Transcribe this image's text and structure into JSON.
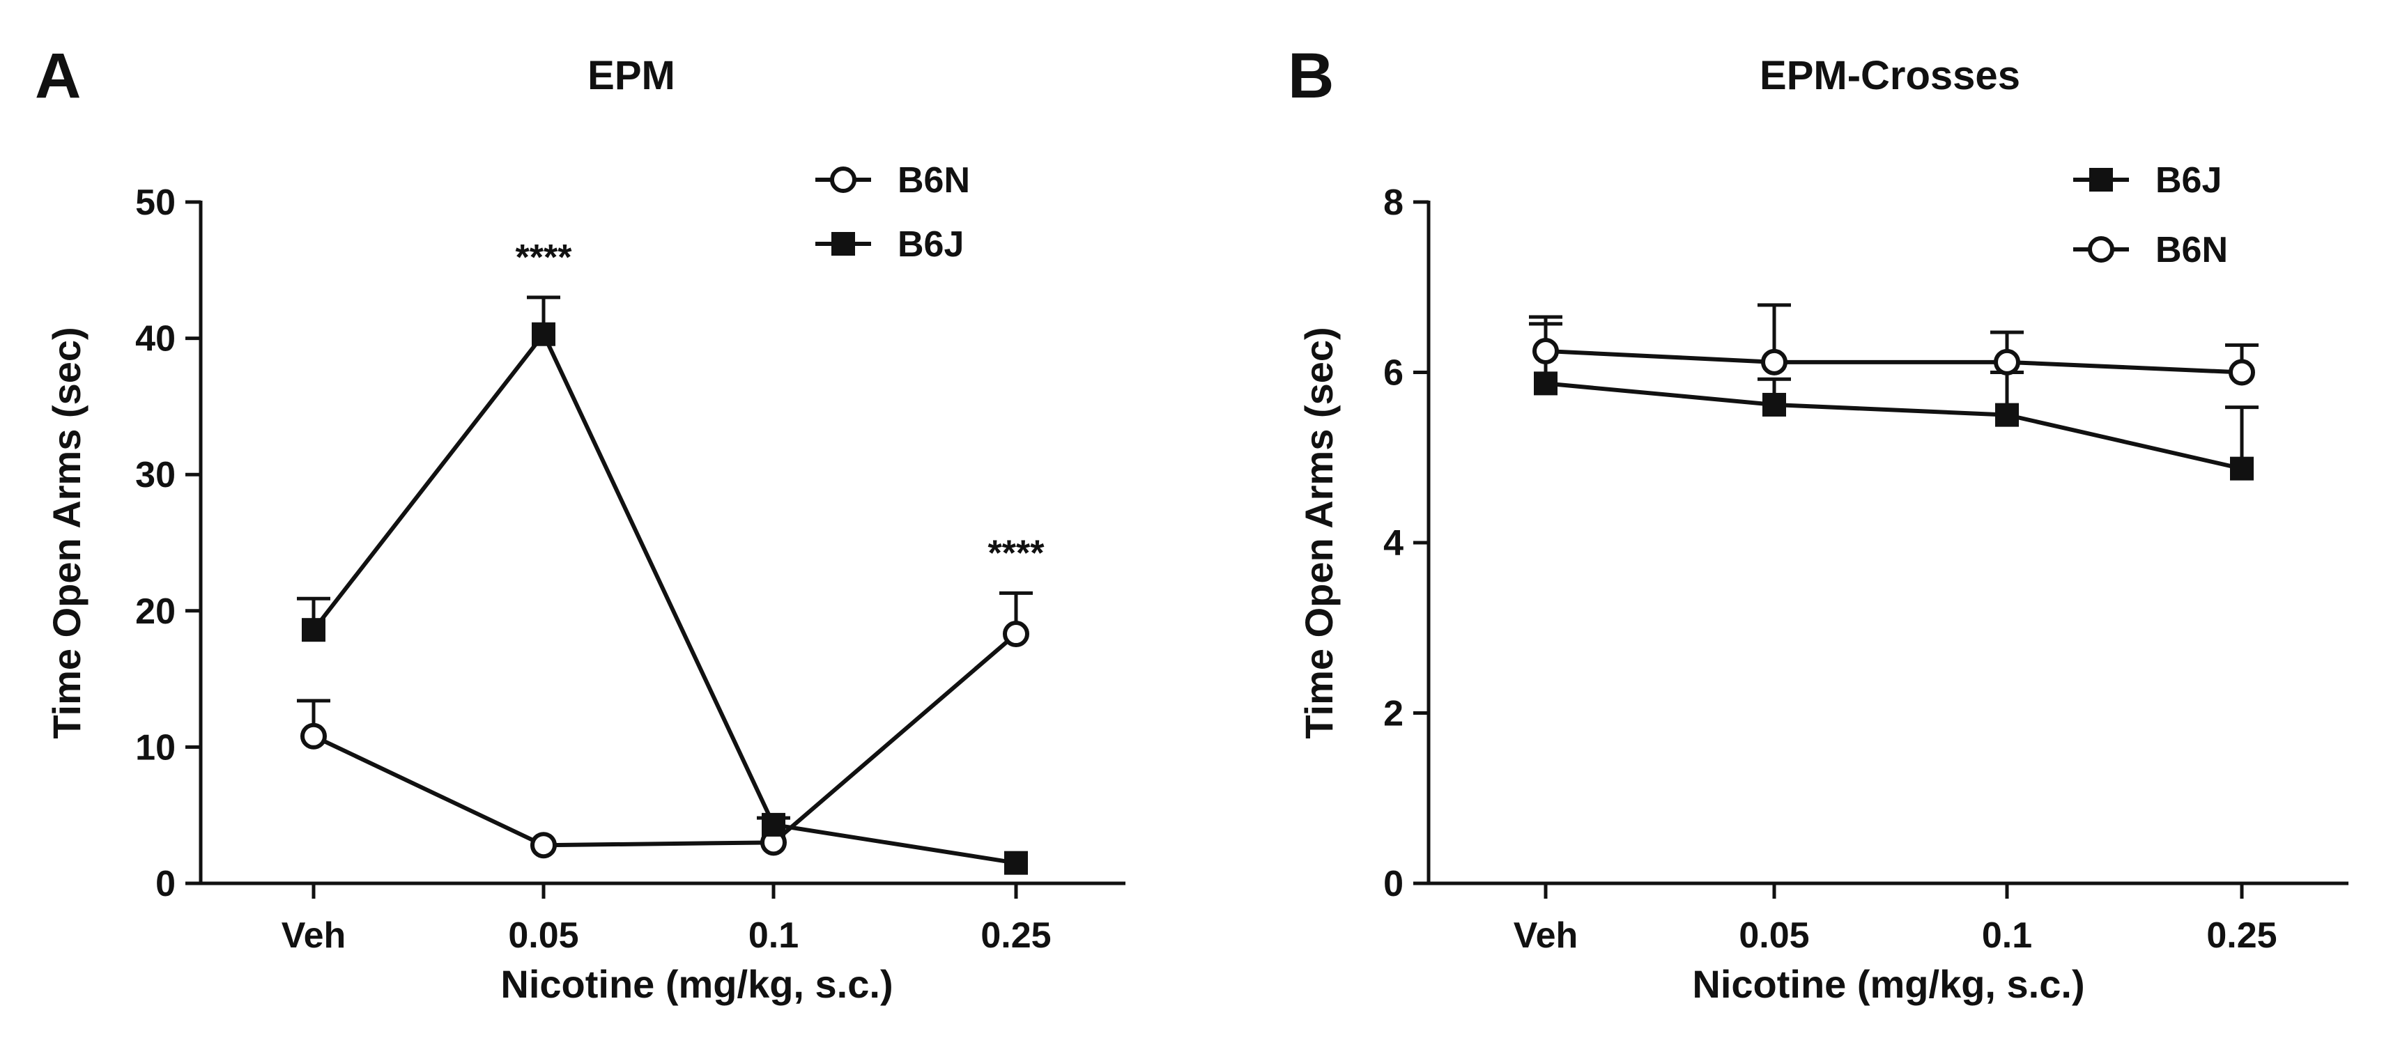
{
  "chart_data": [
    {
      "panel_label": "A",
      "type": "line",
      "title": "EPM",
      "xlabel": "Nicotine (mg/kg, s.c.)",
      "ylabel": "Time Open Arms (sec)",
      "categories": [
        "Veh",
        "0.05",
        "0.1",
        "0.25"
      ],
      "ylim": [
        0,
        50
      ],
      "yticks": [
        0,
        10,
        20,
        30,
        40,
        50
      ],
      "ytick_labels": [
        "0",
        "10",
        "20",
        "30",
        "40",
        "50"
      ],
      "legend_position": "top-right",
      "legend_order": [
        "B6N",
        "B6J"
      ],
      "series": [
        {
          "name": "B6N",
          "marker": "open-circle",
          "values": [
            10.8,
            2.8,
            3.0,
            18.3
          ],
          "errors": [
            2.6,
            0,
            0,
            3.0
          ]
        },
        {
          "name": "B6J",
          "marker": "filled-square",
          "values": [
            18.6,
            40.3,
            4.3,
            1.5
          ],
          "errors": [
            2.3,
            2.7,
            0.5,
            0
          ]
        }
      ],
      "annotations": [
        {
          "text": "****",
          "category": "0.05"
        },
        {
          "text": "****",
          "category": "0.25"
        }
      ]
    },
    {
      "panel_label": "B",
      "type": "line",
      "title": "EPM-Crosses",
      "xlabel": "Nicotine (mg/kg, s.c.)",
      "ylabel": "Time Open Arms (sec)",
      "categories": [
        "Veh",
        "0.05",
        "0.1",
        "0.25"
      ],
      "ylim": [
        0,
        8
      ],
      "yticks": [
        0,
        2,
        4,
        6,
        8
      ],
      "ytick_labels": [
        "0",
        "2",
        "4",
        "6",
        "8"
      ],
      "legend_position": "top-right",
      "legend_order": [
        "B6J",
        "B6N"
      ],
      "series": [
        {
          "name": "B6J",
          "marker": "filled-square",
          "values": [
            5.87,
            5.62,
            5.5,
            4.87
          ],
          "errors": [
            0.7,
            0.3,
            0.5,
            0.72
          ]
        },
        {
          "name": "B6N",
          "marker": "open-circle",
          "values": [
            6.25,
            6.12,
            6.12,
            6.0
          ],
          "errors": [
            0.4,
            0.67,
            0.35,
            0.32
          ]
        }
      ],
      "annotations": []
    }
  ]
}
